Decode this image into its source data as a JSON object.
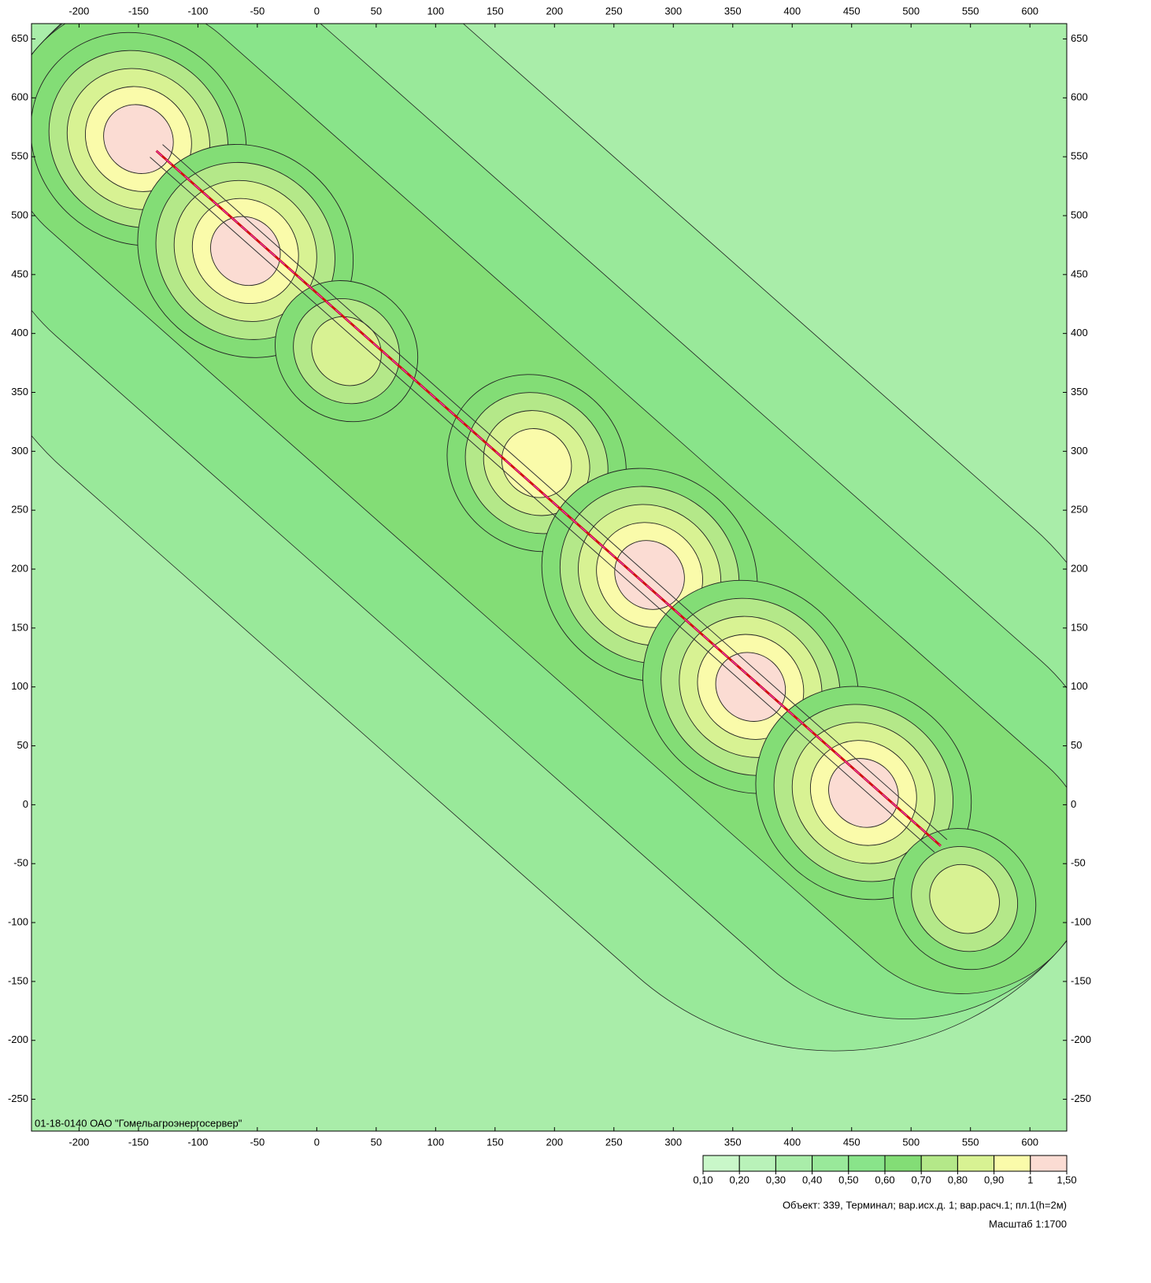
{
  "map": {
    "xlim": [
      -240,
      631
    ],
    "ylim": [
      -277,
      663
    ],
    "xticks": [
      -200,
      -150,
      -100,
      -50,
      0,
      50,
      100,
      150,
      200,
      250,
      300,
      350,
      400,
      450,
      500,
      550,
      600
    ],
    "yticks": [
      650,
      600,
      550,
      500,
      450,
      400,
      350,
      300,
      250,
      200,
      150,
      100,
      50,
      0,
      -50,
      -100,
      -150,
      -200,
      -250
    ],
    "watermark": "01-18-0140 ОАО \"Гомельагроэнергосервер\""
  },
  "legend": {
    "levels": [
      {
        "value": 0.1,
        "label": "0,10"
      },
      {
        "value": 0.2,
        "label": "0,20"
      },
      {
        "value": 0.3,
        "label": "0,30"
      },
      {
        "value": 0.4,
        "label": "0,40"
      },
      {
        "value": 0.5,
        "label": "0,50"
      },
      {
        "value": 0.6,
        "label": "0,60"
      },
      {
        "value": 0.7,
        "label": "0,70"
      },
      {
        "value": 0.8,
        "label": "0,80"
      },
      {
        "value": 0.9,
        "label": "0,90"
      },
      1,
      {
        "value": 1.5,
        "label": "1,50"
      }
    ],
    "colors": [
      "#c9f7c9",
      "#b9f2b9",
      "#a9eda9",
      "#99e99a",
      "#89e48a",
      "#83dd76",
      "#b4e889",
      "#d8f293",
      "#fafbaa",
      "#fbdcd3"
    ]
  },
  "footer": {
    "object": "Объект: 339, Терминал; вар.исх.д. 1; вар.расч.1; пл.1(h=2м)",
    "scale": "Масштаб 1:1700"
  }
}
